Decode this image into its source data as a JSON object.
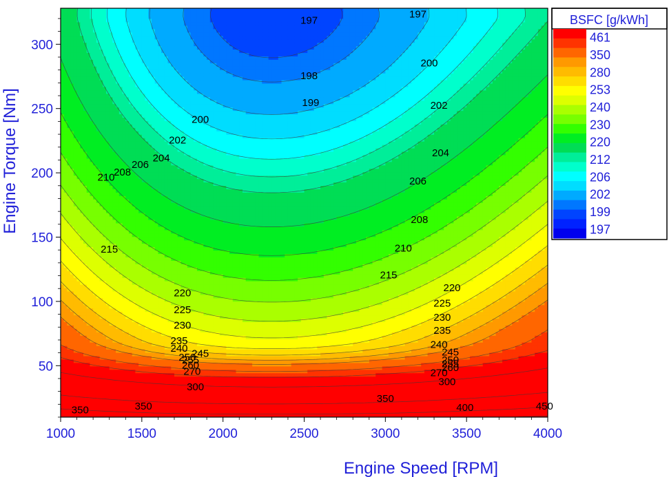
{
  "chart_data": {
    "type": "heatmap",
    "subtype": "filled-contour",
    "title": "",
    "xlabel": "Engine Speed [RPM]",
    "ylabel": "Engine Torque [Nm]",
    "xlim": [
      1000,
      4000
    ],
    "ylim": [
      10,
      328
    ],
    "x_ticks": [
      1000,
      1500,
      2000,
      2500,
      3000,
      3500,
      4000
    ],
    "y_ticks": [
      50,
      100,
      150,
      200,
      250,
      300
    ],
    "grid": false,
    "legend": {
      "title": "BSFC [g/kWh]",
      "placement": "right",
      "labels": [
        "461",
        "350",
        "280",
        "253",
        "240",
        "230",
        "220",
        "212",
        "206",
        "202",
        "199",
        "197"
      ],
      "colors": [
        "#ff0000",
        "#ff3300",
        "#ff6600",
        "#ff9900",
        "#ffbb00",
        "#ffdd00",
        "#ffff00",
        "#ddff00",
        "#aaff00",
        "#77ff00",
        "#33ff00",
        "#00ee22",
        "#00dd55",
        "#00ee99",
        "#00ffcc",
        "#00ffff",
        "#00ddff",
        "#00aaff",
        "#0077ff",
        "#0044ff",
        "#0022ff",
        "#0000ee"
      ]
    },
    "contour_levels": [
      197,
      198,
      199,
      200,
      202,
      204,
      206,
      208,
      210,
      215,
      220,
      225,
      230,
      235,
      240,
      245,
      250,
      255,
      260,
      270,
      280,
      300,
      350,
      400,
      450
    ],
    "contour_labels": [
      {
        "text": "197",
        "x": 2530,
        "y": 318
      },
      {
        "text": "197",
        "x": 3200,
        "y": 323
      },
      {
        "text": "198",
        "x": 2530,
        "y": 275
      },
      {
        "text": "199",
        "x": 2540,
        "y": 254
      },
      {
        "text": "200",
        "x": 3270,
        "y": 285
      },
      {
        "text": "202",
        "x": 3330,
        "y": 252
      },
      {
        "text": "204",
        "x": 3340,
        "y": 215
      },
      {
        "text": "206",
        "x": 3200,
        "y": 193
      },
      {
        "text": "208",
        "x": 3210,
        "y": 163
      },
      {
        "text": "210",
        "x": 3110,
        "y": 141
      },
      {
        "text": "215",
        "x": 3020,
        "y": 120
      },
      {
        "text": "220",
        "x": 3410,
        "y": 110
      },
      {
        "text": "225",
        "x": 3350,
        "y": 98
      },
      {
        "text": "230",
        "x": 3350,
        "y": 87
      },
      {
        "text": "235",
        "x": 3350,
        "y": 77
      },
      {
        "text": "240",
        "x": 3330,
        "y": 66
      },
      {
        "text": "245",
        "x": 3400,
        "y": 60
      },
      {
        "text": "250",
        "x": 3400,
        "y": 54
      },
      {
        "text": "255",
        "x": 3400,
        "y": 51
      },
      {
        "text": "260",
        "x": 3400,
        "y": 48
      },
      {
        "text": "270",
        "x": 3330,
        "y": 44
      },
      {
        "text": "300",
        "x": 3380,
        "y": 37
      },
      {
        "text": "350",
        "x": 3000,
        "y": 24
      },
      {
        "text": "400",
        "x": 3490,
        "y": 17
      },
      {
        "text": "450",
        "x": 3980,
        "y": 18
      },
      {
        "text": "200",
        "x": 1860,
        "y": 241
      },
      {
        "text": "202",
        "x": 1720,
        "y": 225
      },
      {
        "text": "204",
        "x": 1620,
        "y": 211
      },
      {
        "text": "206",
        "x": 1490,
        "y": 206
      },
      {
        "text": "208",
        "x": 1380,
        "y": 200
      },
      {
        "text": "210",
        "x": 1280,
        "y": 196
      },
      {
        "text": "215",
        "x": 1300,
        "y": 140
      },
      {
        "text": "220",
        "x": 1750,
        "y": 106
      },
      {
        "text": "225",
        "x": 1750,
        "y": 93
      },
      {
        "text": "230",
        "x": 1750,
        "y": 81
      },
      {
        "text": "235",
        "x": 1730,
        "y": 69
      },
      {
        "text": "240",
        "x": 1730,
        "y": 63
      },
      {
        "text": "245",
        "x": 1860,
        "y": 59
      },
      {
        "text": "250",
        "x": 1780,
        "y": 56
      },
      {
        "text": "255",
        "x": 1800,
        "y": 54
      },
      {
        "text": "260",
        "x": 1800,
        "y": 50
      },
      {
        "text": "270",
        "x": 1810,
        "y": 45
      },
      {
        "text": "300",
        "x": 1830,
        "y": 33
      },
      {
        "text": "350",
        "x": 1510,
        "y": 18
      },
      {
        "text": "350",
        "x": 1120,
        "y": 15
      }
    ]
  }
}
